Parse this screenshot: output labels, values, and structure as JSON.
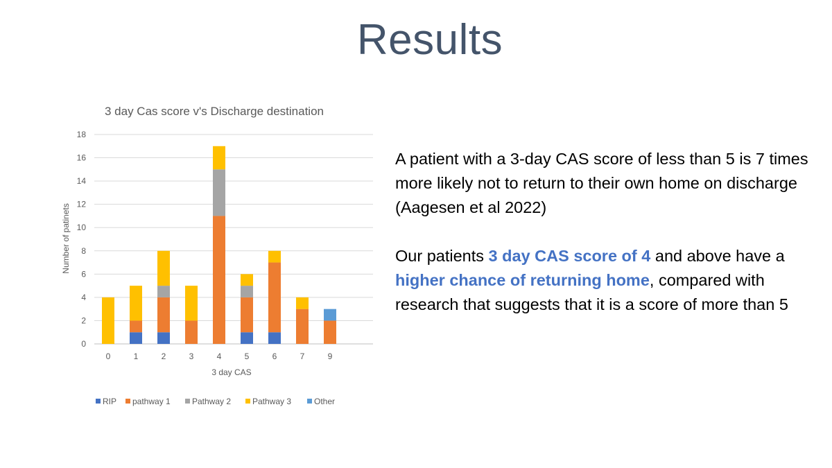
{
  "slide": {
    "title": "Results"
  },
  "text": {
    "para1": "A patient with a 3-day CAS score of less than 5 is 7 times more likely not to return to their own home on discharge (Aagesen et al 2022)",
    "para2_part1": "Our patients ",
    "para2_hl1": "3 day CAS score of 4",
    "para2_part2": " and above have a ",
    "para2_hl2": "higher chance of returning home",
    "para2_part3": ", compared with research that suggests that it is a score of more than 5"
  },
  "chart_data": {
    "type": "bar",
    "stacked": true,
    "title": "3 day Cas score v's Discharge destination",
    "xlabel": "3 day CAS",
    "ylabel": "Number of patinets",
    "categories": [
      "0",
      "1",
      "2",
      "3",
      "4",
      "5",
      "6",
      "7",
      "9"
    ],
    "ylim": [
      0,
      18
    ],
    "yticks": [
      0,
      2,
      4,
      6,
      8,
      10,
      12,
      14,
      16,
      18
    ],
    "grid": true,
    "legend_position": "bottom",
    "series": [
      {
        "name": "RIP",
        "color": "#4472c4",
        "values": [
          0,
          1,
          1,
          0,
          0,
          1,
          1,
          0,
          0
        ]
      },
      {
        "name": "pathway 1",
        "color": "#ed7d31",
        "values": [
          0,
          1,
          3,
          2,
          11,
          3,
          6,
          3,
          2
        ]
      },
      {
        "name": "Pathway 2",
        "color": "#a5a5a5",
        "values": [
          0,
          0,
          1,
          0,
          4,
          1,
          0,
          0,
          0
        ]
      },
      {
        "name": "Pathway 3",
        "color": "#ffc000",
        "values": [
          4,
          3,
          3,
          3,
          2,
          1,
          1,
          1,
          0
        ]
      },
      {
        "name": "Other",
        "color": "#5b9bd5",
        "values": [
          0,
          0,
          0,
          0,
          0,
          0,
          0,
          0,
          1
        ]
      }
    ]
  }
}
